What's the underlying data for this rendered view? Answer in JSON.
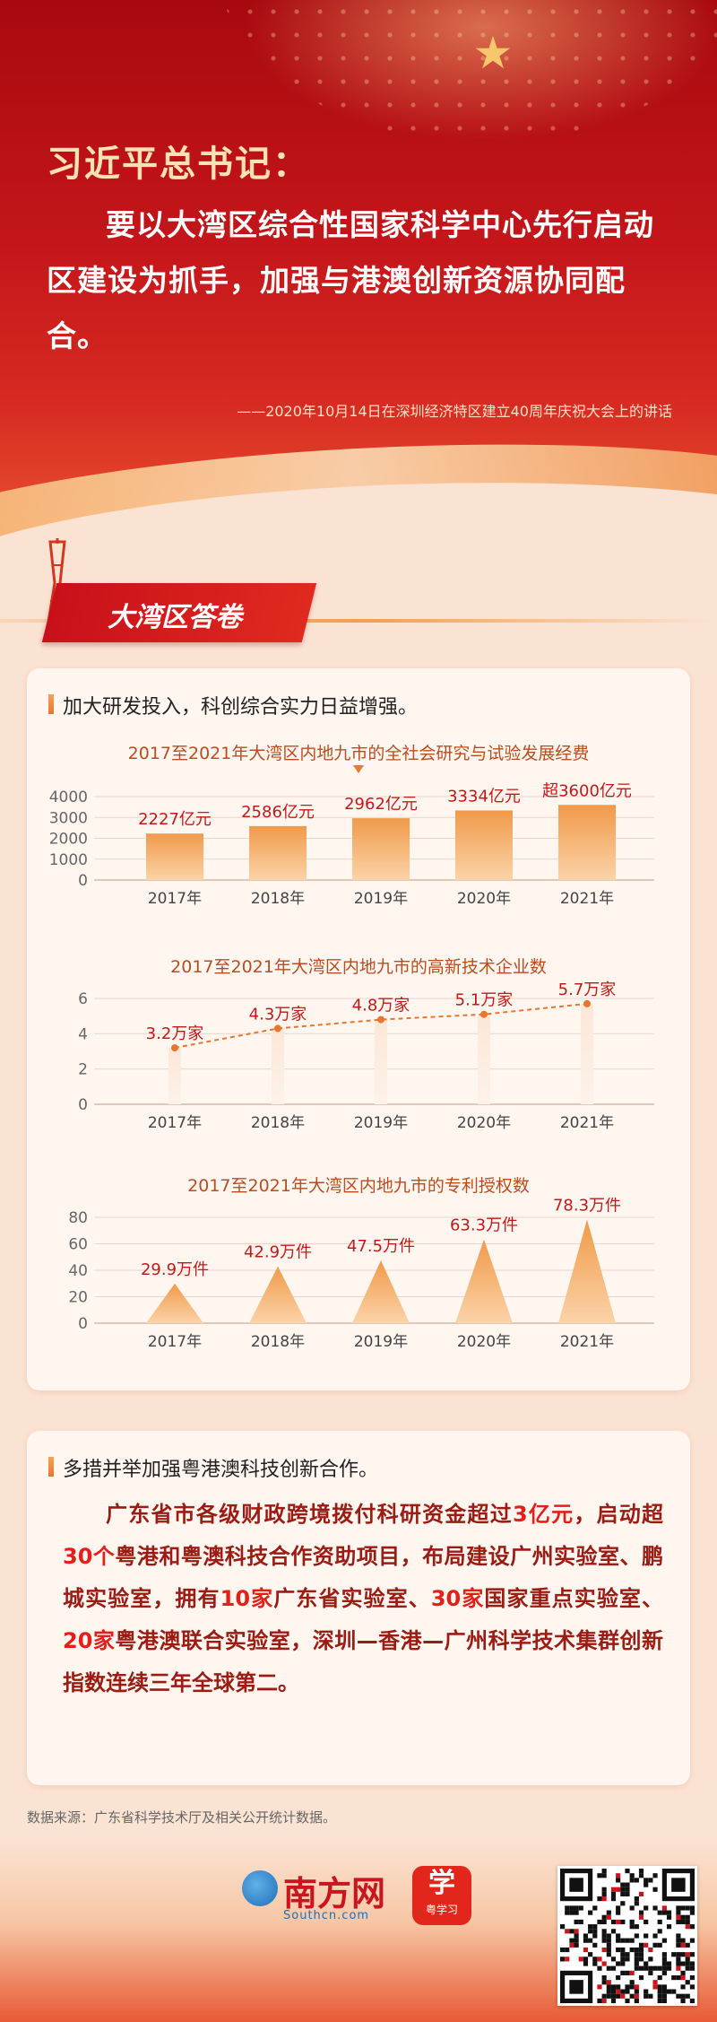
{
  "header": {
    "title": "习近平总书记：",
    "quote": "要以大湾区综合性国家科学中心先行启动区建设为抓手，加强与港澳创新资源协同配合。",
    "source": "——2020年10月14日在深圳经济特区建立40周年庆祝大会上的讲话"
  },
  "section_banner": "大湾区答卷",
  "card1": {
    "heading": "加大研发投入，科创综合实力日益增强。"
  },
  "card2": {
    "heading": "多措并举加强粤港澳科技创新合作。",
    "body": [
      {
        "t": "广东省市各级财政跨境拨付科研资金超过",
        "h": false
      },
      {
        "t": "3亿元",
        "h": true
      },
      {
        "t": "，启动超",
        "h": false
      },
      {
        "t": "30个",
        "h": true
      },
      {
        "t": "粤港和粤澳科技合作资助项目，布局建设广州实验室、鹏城实验室，拥有",
        "h": false
      },
      {
        "t": "10家",
        "h": true
      },
      {
        "t": "广东省实验室、",
        "h": false
      },
      {
        "t": "30家",
        "h": true
      },
      {
        "t": "国家重点实验室、",
        "h": false
      },
      {
        "t": "20家",
        "h": true
      },
      {
        "t": "粤港澳联合实验室，深圳—香港—广州科学技术集群创新指数连续三年全球第二。",
        "h": false
      }
    ]
  },
  "data_source": "数据来源：广东省科学技术厅及相关公开统计数据。",
  "footer": {
    "logo_text": "南方网",
    "logo_domain": "Southcn.com",
    "app_name": "粤学习",
    "app_glyph": "学"
  },
  "colors": {
    "accent": "#e8762e",
    "highlight": "#e31f1a",
    "header_red": "#c4161a"
  },
  "chart_data": [
    {
      "type": "bar",
      "title": "2017至2021年大湾区内地九市的全社会研究与试验发展经费",
      "categories": [
        "2017年",
        "2018年",
        "2019年",
        "2020年",
        "2021年"
      ],
      "values": [
        2227,
        2586,
        2962,
        3334,
        3600
      ],
      "labels": [
        "2227亿元",
        "2586亿元",
        "2962亿元",
        "3334亿元",
        "超3600亿元"
      ],
      "yticks": [
        0,
        1000,
        2000,
        3000,
        4000
      ],
      "ylim": [
        0,
        4000
      ]
    },
    {
      "type": "line",
      "title": "2017至2021年大湾区内地九市的高新技术企业数",
      "categories": [
        "2017年",
        "2018年",
        "2019年",
        "2020年",
        "2021年"
      ],
      "values": [
        3.2,
        4.3,
        4.8,
        5.1,
        5.7
      ],
      "labels": [
        "3.2万家",
        "4.3万家",
        "4.8万家",
        "5.1万家",
        "5.7万家"
      ],
      "yticks": [
        0,
        2,
        4,
        6
      ],
      "ylim": [
        0,
        6
      ]
    },
    {
      "type": "bar",
      "title": "2017至2021年大湾区内地九市的专利授权数",
      "categories": [
        "2017年",
        "2018年",
        "2019年",
        "2020年",
        "2021年"
      ],
      "values": [
        29.9,
        42.9,
        47.5,
        63.3,
        78.3
      ],
      "labels": [
        "29.9万件",
        "42.9万件",
        "47.5万件",
        "63.3万件",
        "78.3万件"
      ],
      "yticks": [
        0,
        20,
        40,
        60,
        80
      ],
      "ylim": [
        0,
        80
      ]
    }
  ]
}
